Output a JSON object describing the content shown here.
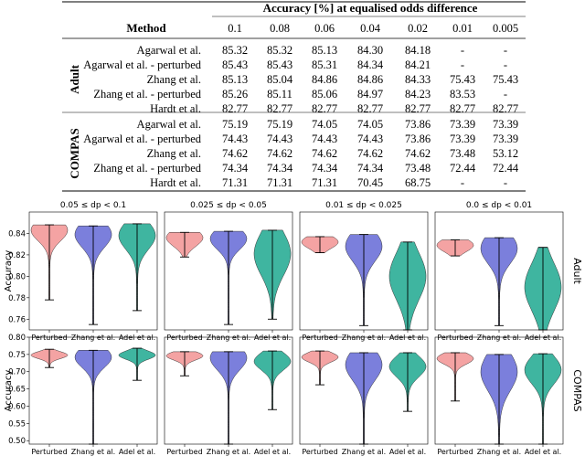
{
  "table": {
    "header_span": "Accuracy [%] at equalised odds difference",
    "method_label": "Method",
    "columns": [
      "0.1",
      "0.08",
      "0.06",
      "0.04",
      "0.02",
      "0.01",
      "0.005"
    ],
    "groups": [
      {
        "name": "Adult",
        "rows": [
          {
            "method": "Agarwal et al.",
            "values": [
              "85.32",
              "85.32",
              "85.13",
              "84.30",
              "84.18",
              "-",
              "-"
            ]
          },
          {
            "method": "Agarwal et al. - perturbed",
            "values": [
              "85.43",
              "85.43",
              "85.31",
              "84.34",
              "84.21",
              "-",
              "-"
            ]
          },
          {
            "method": "Zhang et al.",
            "values": [
              "85.13",
              "85.04",
              "84.86",
              "84.86",
              "84.33",
              "75.43",
              "75.43"
            ]
          },
          {
            "method": "Zhang et al. - perturbed",
            "values": [
              "85.26",
              "85.11",
              "85.06",
              "84.97",
              "84.23",
              "83.53",
              "-"
            ]
          },
          {
            "method": "Hardt et al.",
            "values": [
              "82.77",
              "82.77",
              "82.77",
              "82.77",
              "82.77",
              "82.77",
              "82.77"
            ]
          }
        ]
      },
      {
        "name": "COMPAS",
        "rows": [
          {
            "method": "Agarwal et al.",
            "values": [
              "75.19",
              "75.19",
              "74.05",
              "74.05",
              "73.86",
              "73.39",
              "73.39"
            ]
          },
          {
            "method": "Agarwal et al. - perturbed",
            "values": [
              "74.43",
              "74.43",
              "74.43",
              "74.43",
              "73.86",
              "73.39",
              "73.39"
            ]
          },
          {
            "method": "Zhang et al.",
            "values": [
              "74.62",
              "74.62",
              "74.62",
              "74.62",
              "74.62",
              "73.48",
              "53.12"
            ]
          },
          {
            "method": "Zhang et al. - perturbed",
            "values": [
              "74.34",
              "74.34",
              "74.34",
              "74.34",
              "73.48",
              "72.44",
              "72.44"
            ]
          },
          {
            "method": "Hardt et al.",
            "values": [
              "71.31",
              "71.31",
              "71.31",
              "70.45",
              "68.75",
              "-",
              "-"
            ]
          }
        ]
      }
    ]
  },
  "chart_data": [
    {
      "type": "violin",
      "dataset": "Adult",
      "ylabel": "Accuracy",
      "ylim": [
        0.75,
        0.86
      ],
      "yticks": [
        "0.76",
        "0.78",
        "0.80",
        "0.82",
        "0.84"
      ],
      "yticks_values": [
        0.76,
        0.78,
        0.8,
        0.82,
        0.84
      ],
      "categories": [
        "Perturbed",
        "Zhang et al.",
        "Adel et al."
      ],
      "colors": [
        "#f4a3a3",
        "#7b7fdc",
        "#3fb5a0"
      ],
      "panels": [
        {
          "title": "0.05 ≤ dp < 0.1",
          "min": [
            0.778,
            0.755,
            0.768
          ],
          "max": [
            0.848,
            0.847,
            0.849
          ],
          "center": [
            0.843,
            0.839,
            0.838
          ],
          "spread": [
            0.01,
            0.012,
            0.013
          ]
        },
        {
          "title": "0.025 ≤ dp < 0.05",
          "min": [
            0.818,
            0.755,
            0.76
          ],
          "max": [
            0.841,
            0.842,
            0.843
          ],
          "center": [
            0.836,
            0.835,
            0.821
          ],
          "spread": [
            0.008,
            0.01,
            0.02
          ]
        },
        {
          "title": "0.01 ≤ dp < 0.025",
          "min": [
            0.822,
            0.754,
            0.75
          ],
          "max": [
            0.837,
            0.839,
            0.832
          ],
          "center": [
            0.832,
            0.828,
            0.8
          ],
          "spread": [
            0.006,
            0.014,
            0.022
          ]
        },
        {
          "title": "0.0 ≤ dp < 0.01",
          "min": [
            0.819,
            0.754,
            0.75
          ],
          "max": [
            0.834,
            0.836,
            0.827
          ],
          "center": [
            0.829,
            0.826,
            0.79
          ],
          "spread": [
            0.006,
            0.014,
            0.022
          ]
        }
      ]
    },
    {
      "type": "violin",
      "dataset": "COMPAS",
      "ylabel": "Accuracy",
      "ylim": [
        0.49,
        0.8
      ],
      "yticks": [
        "0.50",
        "0.55",
        "0.60",
        "0.65",
        "0.70",
        "0.75",
        "0.80"
      ],
      "yticks_values": [
        0.5,
        0.55,
        0.6,
        0.65,
        0.7,
        0.75,
        0.8
      ],
      "categories": [
        "Perturbed",
        "Zhang et al.",
        "Adel et al."
      ],
      "colors": [
        "#f4a3a3",
        "#7b7fdc",
        "#3fb5a0"
      ],
      "panels": [
        {
          "title": "",
          "min": [
            0.712,
            0.49,
            0.675
          ],
          "max": [
            0.765,
            0.762,
            0.768
          ],
          "center": [
            0.748,
            0.742,
            0.748
          ],
          "spread": [
            0.01,
            0.03,
            0.012
          ]
        },
        {
          "title": "",
          "min": [
            0.688,
            0.49,
            0.59
          ],
          "max": [
            0.758,
            0.758,
            0.76
          ],
          "center": [
            0.746,
            0.74,
            0.73
          ],
          "spread": [
            0.012,
            0.035,
            0.025
          ]
        },
        {
          "title": "",
          "min": [
            0.662,
            0.49,
            0.585
          ],
          "max": [
            0.76,
            0.755,
            0.755
          ],
          "center": [
            0.742,
            0.72,
            0.715
          ],
          "spread": [
            0.014,
            0.045,
            0.03
          ]
        },
        {
          "title": "",
          "min": [
            0.615,
            0.49,
            0.478
          ],
          "max": [
            0.755,
            0.75,
            0.752
          ],
          "center": [
            0.738,
            0.7,
            0.705
          ],
          "spread": [
            0.016,
            0.055,
            0.04
          ]
        }
      ]
    }
  ]
}
